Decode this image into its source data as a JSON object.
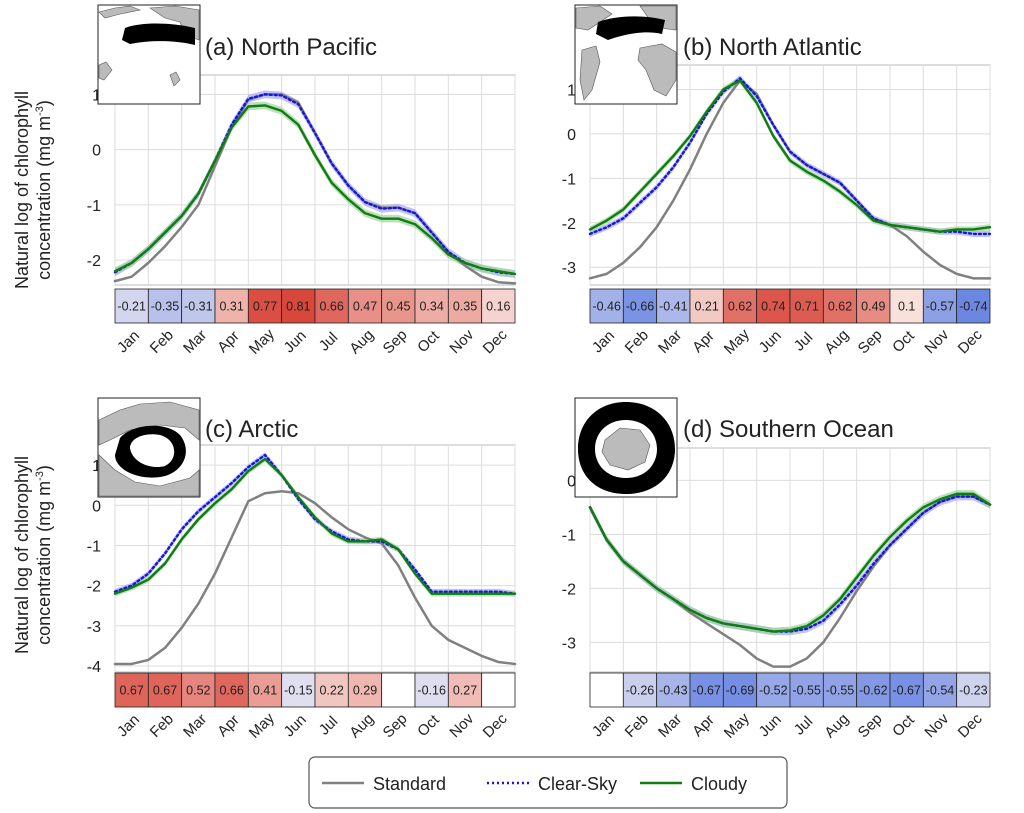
{
  "ylabel_lines": [
    "Natural log of chlorophyll",
    "concentration (mg m",
    "-3",
    ")"
  ],
  "months": [
    "Jan",
    "Feb",
    "Mar",
    "Apr",
    "May",
    "Jun",
    "Jul",
    "Aug",
    "Sep",
    "Oct",
    "Nov",
    "Dec"
  ],
  "legend": [
    {
      "label": "Standard",
      "color": "#808080",
      "style": "solid"
    },
    {
      "label": "Clear-Sky",
      "color": "#1515e0",
      "style": "dotted"
    },
    {
      "label": "Cloudy",
      "color": "#0f7d0f",
      "style": "solid"
    }
  ],
  "colors": {
    "standard": "#808080",
    "clear_sky": "#1515e0",
    "clear_sky_band": "#a8a8ee",
    "cloudy": "#0f7d0f",
    "cloudy_band": "#9fd39f",
    "grid": "#dcdcdc",
    "neg_strong": "#5b7ae0",
    "pos_strong": "#d9483b"
  },
  "chart_data": [
    {
      "type": "line",
      "title": "(a) North Pacific",
      "ylim": [
        -2.45,
        1.35
      ],
      "yticks": [
        -2,
        -1,
        0,
        1
      ],
      "correlations": [
        -0.21,
        -0.35,
        -0.31,
        0.31,
        0.77,
        0.81,
        0.66,
        0.47,
        0.45,
        0.34,
        0.35,
        0.16
      ],
      "series": [
        {
          "name": "Standard",
          "x": [
            0,
            0.5,
            1,
            1.5,
            2,
            2.5,
            3,
            3.5,
            4,
            4.5,
            5,
            5.5,
            6,
            6.5,
            7,
            7.5,
            8,
            8.5,
            9,
            9.5,
            10,
            10.5,
            11,
            11.5,
            12
          ],
          "values": [
            -2.38,
            -2.3,
            -2.05,
            -1.75,
            -1.4,
            -1.0,
            -0.3,
            0.4,
            0.9,
            1.0,
            1.0,
            0.85,
            0.3,
            -0.25,
            -0.65,
            -0.95,
            -1.05,
            -1.05,
            -1.15,
            -1.5,
            -1.85,
            -2.1,
            -2.3,
            -2.4,
            -2.42
          ]
        },
        {
          "name": "Clear-Sky",
          "x": [
            0,
            0.5,
            1,
            1.5,
            2,
            2.5,
            3,
            3.5,
            4,
            4.5,
            5,
            5.5,
            6,
            6.5,
            7,
            7.5,
            8,
            8.5,
            9,
            9.5,
            10,
            10.5,
            11,
            11.5,
            12
          ],
          "values": [
            -2.22,
            -2.05,
            -1.8,
            -1.5,
            -1.2,
            -0.8,
            -0.2,
            0.45,
            0.92,
            1.0,
            0.98,
            0.82,
            0.3,
            -0.25,
            -0.65,
            -0.95,
            -1.07,
            -1.05,
            -1.15,
            -1.5,
            -1.85,
            -2.05,
            -2.15,
            -2.22,
            -2.25
          ]
        },
        {
          "name": "Cloudy",
          "x": [
            0,
            0.5,
            1,
            1.5,
            2,
            2.5,
            3,
            3.5,
            4,
            4.5,
            5,
            5.5,
            6,
            6.5,
            7,
            7.5,
            8,
            8.5,
            9,
            9.5,
            10,
            10.5,
            11,
            11.5,
            12
          ],
          "values": [
            -2.2,
            -2.05,
            -1.8,
            -1.5,
            -1.2,
            -0.8,
            -0.2,
            0.4,
            0.78,
            0.8,
            0.7,
            0.45,
            -0.1,
            -0.6,
            -0.9,
            -1.15,
            -1.25,
            -1.25,
            -1.35,
            -1.6,
            -1.9,
            -2.05,
            -2.15,
            -2.2,
            -2.25
          ]
        }
      ]
    },
    {
      "type": "line",
      "title": "(b) North Atlantic",
      "ylim": [
        -3.4,
        1.55
      ],
      "yticks": [
        -3,
        -2,
        -1,
        0,
        1
      ],
      "correlations": [
        -0.46,
        -0.66,
        -0.41,
        0.21,
        0.62,
        0.74,
        0.71,
        0.62,
        0.49,
        0.1,
        -0.57,
        -0.74
      ],
      "series": [
        {
          "name": "Standard",
          "x": [
            0,
            0.5,
            1,
            1.5,
            2,
            2.5,
            3,
            3.5,
            4,
            4.5,
            5,
            5.5,
            6,
            6.5,
            7,
            7.5,
            8,
            8.5,
            9,
            9.5,
            10,
            10.5,
            11,
            11.5,
            12
          ],
          "values": [
            -3.25,
            -3.15,
            -2.9,
            -2.55,
            -2.1,
            -1.5,
            -0.8,
            0,
            0.7,
            1.2,
            0.9,
            0.2,
            -0.4,
            -0.7,
            -0.9,
            -1.1,
            -1.5,
            -1.9,
            -2.05,
            -2.3,
            -2.65,
            -2.95,
            -3.15,
            -3.25,
            -3.25
          ]
        },
        {
          "name": "Clear-Sky",
          "x": [
            0,
            0.5,
            1,
            1.5,
            2,
            2.5,
            3,
            3.5,
            4,
            4.5,
            5,
            5.5,
            6,
            6.5,
            7,
            7.5,
            8,
            8.5,
            9,
            9.5,
            10,
            10.5,
            11,
            11.5,
            12
          ],
          "values": [
            -2.25,
            -2.1,
            -1.9,
            -1.55,
            -1.2,
            -0.75,
            -0.2,
            0.45,
            0.95,
            1.25,
            0.85,
            0.2,
            -0.4,
            -0.7,
            -0.9,
            -1.1,
            -1.5,
            -1.9,
            -2.05,
            -2.1,
            -2.15,
            -2.2,
            -2.2,
            -2.25,
            -2.25
          ]
        },
        {
          "name": "Cloudy",
          "x": [
            0,
            0.5,
            1,
            1.5,
            2,
            2.5,
            3,
            3.5,
            4,
            4.5,
            5,
            5.5,
            6,
            6.5,
            7,
            7.5,
            8,
            8.5,
            9,
            9.5,
            10,
            10.5,
            11,
            11.5,
            12
          ],
          "values": [
            -2.15,
            -1.95,
            -1.7,
            -1.3,
            -0.9,
            -0.5,
            -0.05,
            0.5,
            1.0,
            1.2,
            0.7,
            -0.05,
            -0.6,
            -0.85,
            -1.05,
            -1.3,
            -1.6,
            -1.95,
            -2.05,
            -2.1,
            -2.15,
            -2.2,
            -2.15,
            -2.15,
            -2.1
          ]
        }
      ]
    },
    {
      "type": "line",
      "title": "(c) Arctic",
      "ylim": [
        -4.15,
        1.5
      ],
      "yticks": [
        -4,
        -3,
        -2,
        -1,
        0,
        1
      ],
      "correlations": [
        0.67,
        0.67,
        0.52,
        0.66,
        0.41,
        -0.15,
        0.22,
        0.29,
        null,
        -0.16,
        0.27,
        null
      ],
      "series": [
        {
          "name": "Standard",
          "x": [
            0,
            0.5,
            1,
            1.5,
            2,
            2.5,
            3,
            3.5,
            4,
            4.5,
            5,
            5.5,
            6,
            6.5,
            7,
            7.5,
            8,
            8.5,
            9,
            9.5,
            10,
            10.5,
            11,
            11.5,
            12
          ],
          "values": [
            -3.95,
            -3.95,
            -3.85,
            -3.55,
            -3.05,
            -2.45,
            -1.7,
            -0.8,
            0.1,
            0.3,
            0.35,
            0.3,
            0.05,
            -0.3,
            -0.6,
            -0.8,
            -0.95,
            -1.5,
            -2.3,
            -3.0,
            -3.35,
            -3.55,
            -3.75,
            -3.9,
            -3.95
          ]
        },
        {
          "name": "Clear-Sky",
          "x": [
            0,
            0.5,
            1,
            1.5,
            2,
            2.5,
            3,
            3.5,
            4,
            4.5,
            5,
            5.5,
            6,
            6.5,
            7,
            7.5,
            8,
            8.5,
            9,
            9.5,
            10,
            10.5,
            11,
            11.5,
            12
          ],
          "values": [
            -2.15,
            -2.0,
            -1.7,
            -1.2,
            -0.6,
            -0.15,
            0.2,
            0.55,
            0.95,
            1.25,
            0.75,
            0.15,
            -0.35,
            -0.65,
            -0.85,
            -0.9,
            -0.9,
            -1.1,
            -1.6,
            -2.15,
            -2.15,
            -2.15,
            -2.15,
            -2.15,
            -2.2
          ]
        },
        {
          "name": "Cloudy",
          "x": [
            0,
            0.5,
            1,
            1.5,
            2,
            2.5,
            3,
            3.5,
            4,
            4.5,
            5,
            5.5,
            6,
            6.5,
            7,
            7.5,
            8,
            8.5,
            9,
            9.5,
            10,
            10.5,
            11,
            11.5,
            12
          ],
          "values": [
            -2.2,
            -2.05,
            -1.85,
            -1.45,
            -0.85,
            -0.35,
            0.05,
            0.4,
            0.85,
            1.15,
            0.75,
            0.2,
            -0.3,
            -0.7,
            -0.9,
            -0.9,
            -0.85,
            -1.1,
            -1.7,
            -2.2,
            -2.2,
            -2.2,
            -2.2,
            -2.2,
            -2.2
          ]
        }
      ]
    },
    {
      "type": "line",
      "title": "(d) Southern Ocean",
      "ylim": [
        -3.55,
        0.6
      ],
      "yticks": [
        -3,
        -2,
        -1,
        0
      ],
      "correlations": [
        null,
        -0.26,
        -0.43,
        -0.67,
        -0.69,
        -0.52,
        -0.55,
        -0.55,
        -0.62,
        -0.67,
        -0.54,
        -0.23
      ],
      "series": [
        {
          "name": "Standard",
          "x": [
            0,
            0.5,
            1,
            1.5,
            2,
            2.5,
            3,
            3.5,
            4,
            4.5,
            5,
            5.5,
            6,
            6.5,
            7,
            7.5,
            8,
            8.5,
            9,
            9.5,
            10,
            10.5,
            11,
            11.5,
            12
          ],
          "values": [
            -0.5,
            -1.1,
            -1.5,
            -1.75,
            -2.0,
            -2.2,
            -2.45,
            -2.65,
            -2.85,
            -3.05,
            -3.3,
            -3.45,
            -3.45,
            -3.3,
            -3.0,
            -2.55,
            -2.05,
            -1.6,
            -1.2,
            -0.9,
            -0.6,
            -0.4,
            -0.3,
            -0.3,
            -0.45
          ]
        },
        {
          "name": "Clear-Sky",
          "x": [
            0,
            0.5,
            1,
            1.5,
            2,
            2.5,
            3,
            3.5,
            4,
            4.5,
            5,
            5.5,
            6,
            6.5,
            7,
            7.5,
            8,
            8.5,
            9,
            9.5,
            10,
            10.5,
            11,
            11.5,
            12
          ],
          "values": [
            -0.5,
            -1.1,
            -1.5,
            -1.75,
            -2.0,
            -2.2,
            -2.4,
            -2.55,
            -2.65,
            -2.7,
            -2.75,
            -2.8,
            -2.8,
            -2.75,
            -2.6,
            -2.3,
            -1.95,
            -1.55,
            -1.2,
            -0.9,
            -0.6,
            -0.4,
            -0.3,
            -0.3,
            -0.45
          ]
        },
        {
          "name": "Cloudy",
          "x": [
            0,
            0.5,
            1,
            1.5,
            2,
            2.5,
            3,
            3.5,
            4,
            4.5,
            5,
            5.5,
            6,
            6.5,
            7,
            7.5,
            8,
            8.5,
            9,
            9.5,
            10,
            10.5,
            11,
            11.5,
            12
          ],
          "values": [
            -0.5,
            -1.1,
            -1.5,
            -1.75,
            -2.0,
            -2.2,
            -2.4,
            -2.55,
            -2.65,
            -2.7,
            -2.75,
            -2.8,
            -2.78,
            -2.7,
            -2.5,
            -2.2,
            -1.8,
            -1.4,
            -1.05,
            -0.75,
            -0.5,
            -0.35,
            -0.25,
            -0.25,
            -0.45
          ]
        }
      ]
    }
  ]
}
